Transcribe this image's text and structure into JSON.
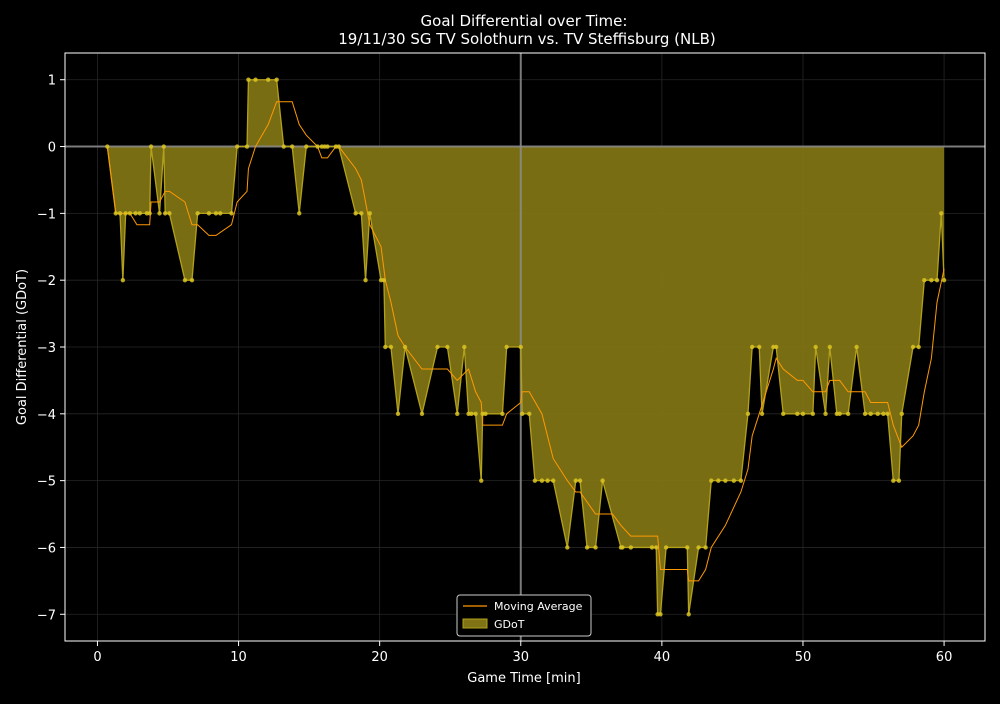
{
  "chart_data": {
    "type": "area",
    "title": "Goal Differential over Time:",
    "subtitle": "19/11/30 SG TV Solothurn  vs.  TV Steffisburg (NLB)",
    "xlabel": "Game Time [min]",
    "ylabel": "Goal Differential (GDoT)",
    "xlim": [
      -2.3,
      62.9
    ],
    "ylim": [
      -7.4,
      1.4
    ],
    "xticks": [
      0,
      10,
      20,
      30,
      40,
      50,
      60
    ],
    "yticks": [
      1,
      0,
      -1,
      -2,
      -3,
      -4,
      -5,
      -6,
      -7
    ],
    "grid": true,
    "halftime_line_x": 30,
    "legend_position": "bottom-center",
    "series": [
      {
        "name": "GDoT",
        "color": "#b3a11c",
        "points": [
          [
            0.7,
            0
          ],
          [
            1.3,
            -1
          ],
          [
            1.6,
            -1
          ],
          [
            1.8,
            -2
          ],
          [
            2.0,
            -1
          ],
          [
            2.3,
            -1
          ],
          [
            2.7,
            -1
          ],
          [
            3.0,
            -1
          ],
          [
            3.5,
            -1
          ],
          [
            3.7,
            -1
          ],
          [
            3.8,
            0
          ],
          [
            4.4,
            -1
          ],
          [
            4.7,
            0
          ],
          [
            4.8,
            -1
          ],
          [
            5.1,
            -1
          ],
          [
            6.2,
            -2
          ],
          [
            6.7,
            -2
          ],
          [
            7.1,
            -1
          ],
          [
            7.9,
            -1
          ],
          [
            8.4,
            -1
          ],
          [
            8.7,
            -1
          ],
          [
            9.5,
            -1
          ],
          [
            9.9,
            0
          ],
          [
            10.6,
            0
          ],
          [
            10.7,
            1
          ],
          [
            11.2,
            1
          ],
          [
            12.1,
            1
          ],
          [
            12.7,
            1
          ],
          [
            13.2,
            0
          ],
          [
            13.8,
            0
          ],
          [
            14.3,
            -1
          ],
          [
            14.8,
            0
          ],
          [
            15.6,
            0
          ],
          [
            15.9,
            0
          ],
          [
            16.1,
            0
          ],
          [
            16.3,
            0
          ],
          [
            16.9,
            0
          ],
          [
            17.1,
            0
          ],
          [
            18.3,
            -1
          ],
          [
            18.7,
            -1
          ],
          [
            19.0,
            -2
          ],
          [
            19.3,
            -1
          ],
          [
            20.1,
            -2
          ],
          [
            20.3,
            -2
          ],
          [
            20.4,
            -3
          ],
          [
            20.8,
            -3
          ],
          [
            21.3,
            -4
          ],
          [
            21.8,
            -3
          ],
          [
            23.0,
            -4
          ],
          [
            24.1,
            -3
          ],
          [
            24.8,
            -3
          ],
          [
            25.5,
            -4
          ],
          [
            26.0,
            -3
          ],
          [
            26.3,
            -4
          ],
          [
            26.5,
            -4
          ],
          [
            26.8,
            -4
          ],
          [
            27.2,
            -5
          ],
          [
            27.3,
            -4
          ],
          [
            27.5,
            -4
          ],
          [
            28.7,
            -4
          ],
          [
            29.0,
            -3
          ],
          [
            30.0,
            -3
          ],
          [
            30.1,
            -4
          ],
          [
            30.6,
            -4
          ],
          [
            31.0,
            -5
          ],
          [
            31.5,
            -5
          ],
          [
            31.9,
            -5
          ],
          [
            32.3,
            -5
          ],
          [
            33.3,
            -6
          ],
          [
            33.9,
            -5
          ],
          [
            34.2,
            -5
          ],
          [
            34.7,
            -6
          ],
          [
            35.3,
            -6
          ],
          [
            35.8,
            -5
          ],
          [
            37.1,
            -6
          ],
          [
            37.2,
            -6
          ],
          [
            37.8,
            -6
          ],
          [
            39.3,
            -6
          ],
          [
            39.6,
            -6
          ],
          [
            39.7,
            -7
          ],
          [
            39.9,
            -7
          ],
          [
            40.3,
            -6
          ],
          [
            41.8,
            -6
          ],
          [
            41.9,
            -7
          ],
          [
            42.6,
            -6
          ],
          [
            43.1,
            -6
          ],
          [
            43.5,
            -5
          ],
          [
            44.0,
            -5
          ],
          [
            44.5,
            -5
          ],
          [
            45.1,
            -5
          ],
          [
            45.6,
            -5
          ],
          [
            46.1,
            -4
          ],
          [
            46.4,
            -3
          ],
          [
            46.9,
            -3
          ],
          [
            47.1,
            -4
          ],
          [
            47.9,
            -3
          ],
          [
            48.1,
            -3
          ],
          [
            48.6,
            -4
          ],
          [
            49.6,
            -4
          ],
          [
            50.0,
            -4
          ],
          [
            50.7,
            -4
          ],
          [
            50.9,
            -3
          ],
          [
            51.6,
            -4
          ],
          [
            51.9,
            -3
          ],
          [
            52.4,
            -4
          ],
          [
            52.6,
            -4
          ],
          [
            53.2,
            -4
          ],
          [
            53.8,
            -3
          ],
          [
            54.4,
            -4
          ],
          [
            54.8,
            -4
          ],
          [
            55.3,
            -4
          ],
          [
            55.7,
            -4
          ],
          [
            56.0,
            -4
          ],
          [
            56.4,
            -5
          ],
          [
            56.8,
            -5
          ],
          [
            57.0,
            -4
          ],
          [
            57.8,
            -3
          ],
          [
            58.2,
            -3
          ],
          [
            58.6,
            -2
          ],
          [
            59.1,
            -2
          ],
          [
            59.5,
            -2
          ],
          [
            59.8,
            -1
          ],
          [
            60.0,
            -2
          ]
        ]
      },
      {
        "name": "Moving Average",
        "color": "#ff9900",
        "points": [
          [
            0.7,
            0
          ],
          [
            1.3,
            -1
          ],
          [
            2.3,
            -1
          ],
          [
            2.8,
            -1.17
          ],
          [
            3.7,
            -1.17
          ],
          [
            3.8,
            -0.83
          ],
          [
            4.4,
            -0.83
          ],
          [
            4.8,
            -0.67
          ],
          [
            5.1,
            -0.67
          ],
          [
            6.2,
            -0.83
          ],
          [
            6.7,
            -1.17
          ],
          [
            7.1,
            -1.17
          ],
          [
            7.9,
            -1.33
          ],
          [
            8.4,
            -1.33
          ],
          [
            9.5,
            -1.17
          ],
          [
            9.9,
            -0.83
          ],
          [
            10.6,
            -0.67
          ],
          [
            10.7,
            -0.33
          ],
          [
            11.2,
            0
          ],
          [
            12.1,
            0.33
          ],
          [
            12.7,
            0.67
          ],
          [
            13.8,
            0.67
          ],
          [
            14.3,
            0.33
          ],
          [
            14.8,
            0.17
          ],
          [
            15.6,
            0.0
          ],
          [
            15.9,
            -0.17
          ],
          [
            16.3,
            -0.17
          ],
          [
            16.9,
            0
          ],
          [
            17.1,
            0
          ],
          [
            18.3,
            -0.33
          ],
          [
            18.7,
            -0.5
          ],
          [
            19.0,
            -0.83
          ],
          [
            19.3,
            -1.17
          ],
          [
            20.1,
            -1.5
          ],
          [
            20.4,
            -2.0
          ],
          [
            20.8,
            -2.33
          ],
          [
            21.3,
            -2.83
          ],
          [
            21.8,
            -3.0
          ],
          [
            23.0,
            -3.33
          ],
          [
            24.8,
            -3.33
          ],
          [
            25.5,
            -3.5
          ],
          [
            26.3,
            -3.33
          ],
          [
            26.8,
            -3.67
          ],
          [
            27.2,
            -3.83
          ],
          [
            27.3,
            -4.17
          ],
          [
            28.7,
            -4.17
          ],
          [
            29.0,
            -4.0
          ],
          [
            30.0,
            -3.83
          ],
          [
            30.1,
            -3.67
          ],
          [
            30.6,
            -3.67
          ],
          [
            31.5,
            -4.0
          ],
          [
            32.3,
            -4.67
          ],
          [
            33.3,
            -5.0
          ],
          [
            33.9,
            -5.17
          ],
          [
            34.2,
            -5.17
          ],
          [
            35.3,
            -5.5
          ],
          [
            36.5,
            -5.5
          ],
          [
            37.1,
            -5.67
          ],
          [
            37.8,
            -5.83
          ],
          [
            39.7,
            -5.83
          ],
          [
            39.9,
            -6.33
          ],
          [
            41.8,
            -6.33
          ],
          [
            41.9,
            -6.5
          ],
          [
            42.6,
            -6.5
          ],
          [
            43.1,
            -6.33
          ],
          [
            43.5,
            -6.0
          ],
          [
            44.5,
            -5.67
          ],
          [
            45.6,
            -5.17
          ],
          [
            46.1,
            -4.83
          ],
          [
            46.4,
            -4.33
          ],
          [
            46.9,
            -4.0
          ],
          [
            47.9,
            -3.33
          ],
          [
            48.1,
            -3.17
          ],
          [
            48.6,
            -3.33
          ],
          [
            49.6,
            -3.5
          ],
          [
            50.0,
            -3.5
          ],
          [
            50.7,
            -3.67
          ],
          [
            51.6,
            -3.67
          ],
          [
            51.9,
            -3.5
          ],
          [
            52.6,
            -3.5
          ],
          [
            53.2,
            -3.67
          ],
          [
            54.4,
            -3.67
          ],
          [
            54.8,
            -3.83
          ],
          [
            56.0,
            -3.83
          ],
          [
            56.4,
            -4.17
          ],
          [
            57.0,
            -4.5
          ],
          [
            57.8,
            -4.33
          ],
          [
            58.2,
            -4.17
          ],
          [
            58.6,
            -3.67
          ],
          [
            59.1,
            -3.17
          ],
          [
            59.5,
            -2.33
          ],
          [
            60.0,
            -1.83
          ]
        ]
      }
    ]
  }
}
